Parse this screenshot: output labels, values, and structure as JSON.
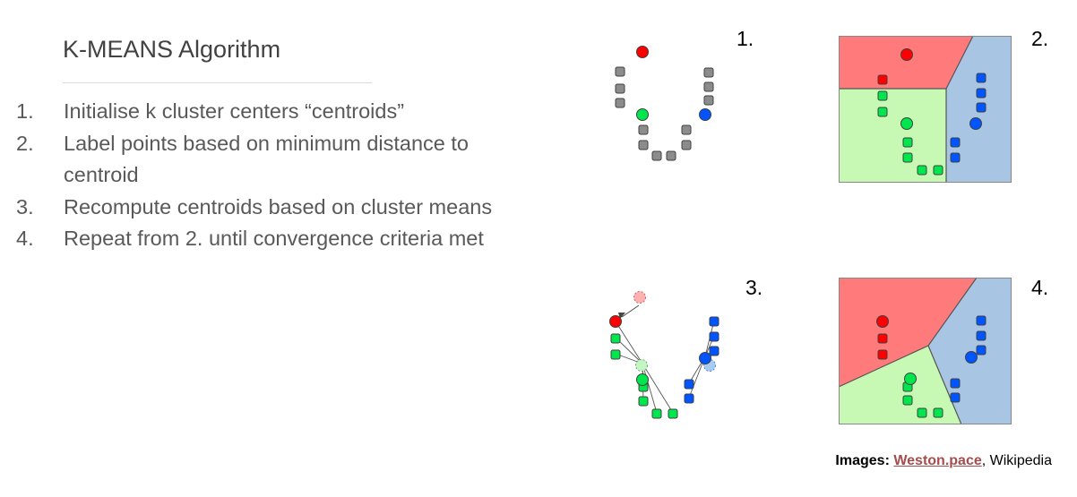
{
  "title": "K-MEANS Algorithm",
  "steps": [
    {
      "num": "1.",
      "text": "Initialise k cluster centers “centroids”"
    },
    {
      "num": "2.",
      "text": "Label points based on minimum distance to centroid"
    },
    {
      "num": "3.",
      "text": "Recompute centroids based on cluster means"
    },
    {
      "num": "4.",
      "text": "Repeat from 2. until convergence criteria met"
    }
  ],
  "panels": [
    {
      "label": "1."
    },
    {
      "label": "2."
    },
    {
      "label": "3."
    },
    {
      "label": "4."
    }
  ],
  "caption": {
    "prefix": "Images: ",
    "link": "Weston.pace",
    "suffix": ", Wikipedia"
  },
  "colors": {
    "red": "#ff0000",
    "green": "#00e64d",
    "blue": "#0055ff",
    "grey": "#8c8c8c",
    "region_red": "#ff7b7b",
    "region_green": "#c8f9b4",
    "region_blue": "#a9c5e4"
  }
}
